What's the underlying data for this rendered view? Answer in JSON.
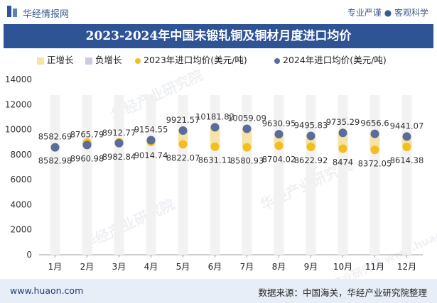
{
  "header": {
    "brand": "华经情报网",
    "slogan": "专业严谨 ● 客观科学"
  },
  "watermarks": [
    "华经产业研究院",
    "华经产业研究院",
    "华经产业研究院",
    "华经产业研究院 www.huaon.com"
  ],
  "footer": {
    "site": "www.huaon.com",
    "source": "数据来源：中国海关，华经产业研究院整理"
  },
  "chart_data": {
    "type": "bar",
    "title": "2023-2024年中国未锻轧铜及铜材月度进口均价",
    "categories": [
      "1月",
      "2月",
      "3月",
      "4月",
      "5月",
      "6月",
      "7月",
      "8月",
      "9月",
      "10月",
      "11月",
      "12月"
    ],
    "ylim": [
      0,
      14000
    ],
    "yticks": [
      0,
      2000,
      4000,
      6000,
      8000,
      10000,
      12000,
      14000
    ],
    "grid": false,
    "legend": [
      "正增长",
      "负增长",
      "2023年进口均价(美元/吨)",
      "2024年进口均价(美元/吨)"
    ],
    "colors": {
      "positive": "#f6e3a8",
      "negative": "#c9cde3",
      "series2023": "#f5bd1e",
      "series2024": "#5b6c9a",
      "background_bar": "#f2f2f2"
    },
    "series": [
      {
        "name": "2023年进口均价(美元/吨)",
        "values": [
          8582.98,
          8960.98,
          8982.84,
          9014.74,
          8822.07,
          8631.11,
          8580.93,
          8704.02,
          8622.92,
          8474,
          8372.05,
          8614.38
        ],
        "labels": [
          "8582.98",
          "8960.98",
          "8982.84",
          "9014.74",
          "8822.07",
          "8631.11",
          "8580.93",
          "8704.02",
          "8622.92",
          "8474",
          "8372.05",
          "8614.38"
        ]
      },
      {
        "name": "2024年进口均价(美元/吨)",
        "values": [
          8582.69,
          8765.79,
          8912.77,
          9154.55,
          9921.57,
          10181.82,
          10059.09,
          9630.95,
          9495.83,
          9735.29,
          9656.6,
          9441.07
        ],
        "labels": [
          "8582.69",
          "8765.79",
          "8912.77",
          "9154.55",
          "9921.57",
          "10181.82",
          "10059.09",
          "9630.95",
          "9495.83",
          "9735.29",
          "9656.6",
          "9441.07"
        ]
      }
    ]
  }
}
